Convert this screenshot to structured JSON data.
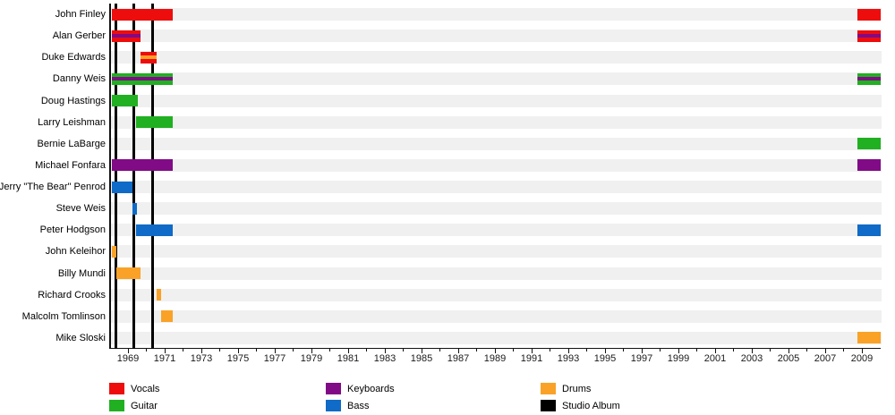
{
  "chart_data": {
    "type": "bar",
    "subtype": "gantt-membership-timeline",
    "title": "",
    "xlabel": "",
    "ylabel": "",
    "x_axis": {
      "min": 1968,
      "max": 2010.1,
      "labeled_ticks": [
        1969,
        1971,
        1973,
        1975,
        1977,
        1979,
        1981,
        1983,
        1985,
        1987,
        1989,
        1991,
        1993,
        1995,
        1997,
        1999,
        2001,
        2003,
        2005,
        2007,
        2009
      ],
      "minor_tick_every": 1,
      "grid": false
    },
    "colors": {
      "vocals": "#ee0d0d",
      "guitar": "#21b021",
      "keyboards": "#810b86",
      "bass": "#0f6bc7",
      "drums": "#f9a227",
      "album": "#000000",
      "row_stripe": "#f0f0f0",
      "axis": "#111111"
    },
    "legend_columns": [
      [
        {
          "label": "Vocals",
          "role": "vocals"
        },
        {
          "label": "Guitar",
          "role": "guitar"
        }
      ],
      [
        {
          "label": "Keyboards",
          "role": "keyboards"
        },
        {
          "label": "Bass",
          "role": "bass"
        }
      ],
      [
        {
          "label": "Drums",
          "role": "drums"
        },
        {
          "label": "Studio Album",
          "role": "album"
        }
      ]
    ],
    "studio_album_years": [
      1968.35,
      1969.3,
      1970.35
    ],
    "members": [
      {
        "name": "John Finley",
        "segments": [
          {
            "start": 1968.1,
            "end": 1971.45,
            "roles": [
              "vocals"
            ]
          },
          {
            "start": 2008.75,
            "end": 2010.0,
            "roles": [
              "vocals"
            ]
          }
        ]
      },
      {
        "name": "Alan Gerber",
        "segments": [
          {
            "start": 1968.1,
            "end": 1969.68,
            "roles": [
              "vocals",
              "keyboards"
            ]
          },
          {
            "start": 2008.75,
            "end": 2010.0,
            "roles": [
              "vocals",
              "keyboards"
            ]
          }
        ]
      },
      {
        "name": "Duke Edwards",
        "segments": [
          {
            "start": 1969.68,
            "end": 1970.55,
            "roles": [
              "vocals",
              "drums"
            ]
          }
        ]
      },
      {
        "name": "Danny Weis",
        "segments": [
          {
            "start": 1968.1,
            "end": 1971.45,
            "roles": [
              "guitar",
              "keyboards"
            ]
          },
          {
            "start": 2008.75,
            "end": 2010.0,
            "roles": [
              "guitar",
              "keyboards"
            ]
          }
        ]
      },
      {
        "name": "Doug Hastings",
        "segments": [
          {
            "start": 1968.1,
            "end": 1969.55,
            "roles": [
              "guitar"
            ]
          }
        ]
      },
      {
        "name": "Larry Leishman",
        "segments": [
          {
            "start": 1969.45,
            "end": 1971.45,
            "roles": [
              "guitar"
            ]
          }
        ]
      },
      {
        "name": "Bernie LaBarge",
        "segments": [
          {
            "start": 2008.75,
            "end": 2010.0,
            "roles": [
              "guitar"
            ]
          }
        ]
      },
      {
        "name": "Michael Fonfara",
        "segments": [
          {
            "start": 1968.1,
            "end": 1971.45,
            "roles": [
              "keyboards"
            ]
          },
          {
            "start": 2008.75,
            "end": 2010.0,
            "roles": [
              "keyboards"
            ]
          }
        ]
      },
      {
        "name": "Jerry \"The Bear\" Penrod",
        "segments": [
          {
            "start": 1968.1,
            "end": 1969.25,
            "roles": [
              "bass"
            ]
          }
        ]
      },
      {
        "name": "Steve Weis",
        "segments": [
          {
            "start": 1969.25,
            "end": 1969.5,
            "roles": [
              "bass"
            ]
          }
        ]
      },
      {
        "name": "Peter Hodgson",
        "segments": [
          {
            "start": 1969.45,
            "end": 1971.45,
            "roles": [
              "bass"
            ]
          },
          {
            "start": 2008.75,
            "end": 2010.0,
            "roles": [
              "bass"
            ]
          }
        ]
      },
      {
        "name": "John Keleihor",
        "segments": [
          {
            "start": 1968.1,
            "end": 1968.35,
            "roles": [
              "drums"
            ]
          }
        ]
      },
      {
        "name": "Billy Mundi",
        "segments": [
          {
            "start": 1968.35,
            "end": 1969.68,
            "roles": [
              "drums"
            ]
          }
        ]
      },
      {
        "name": "Richard Crooks",
        "segments": [
          {
            "start": 1970.55,
            "end": 1970.8,
            "roles": [
              "drums"
            ]
          }
        ]
      },
      {
        "name": "Malcolm Tomlinson",
        "segments": [
          {
            "start": 1970.8,
            "end": 1971.45,
            "roles": [
              "drums"
            ]
          }
        ]
      },
      {
        "name": "Mike Sloski",
        "segments": [
          {
            "start": 2008.75,
            "end": 2010.0,
            "roles": [
              "drums"
            ]
          }
        ]
      }
    ]
  }
}
